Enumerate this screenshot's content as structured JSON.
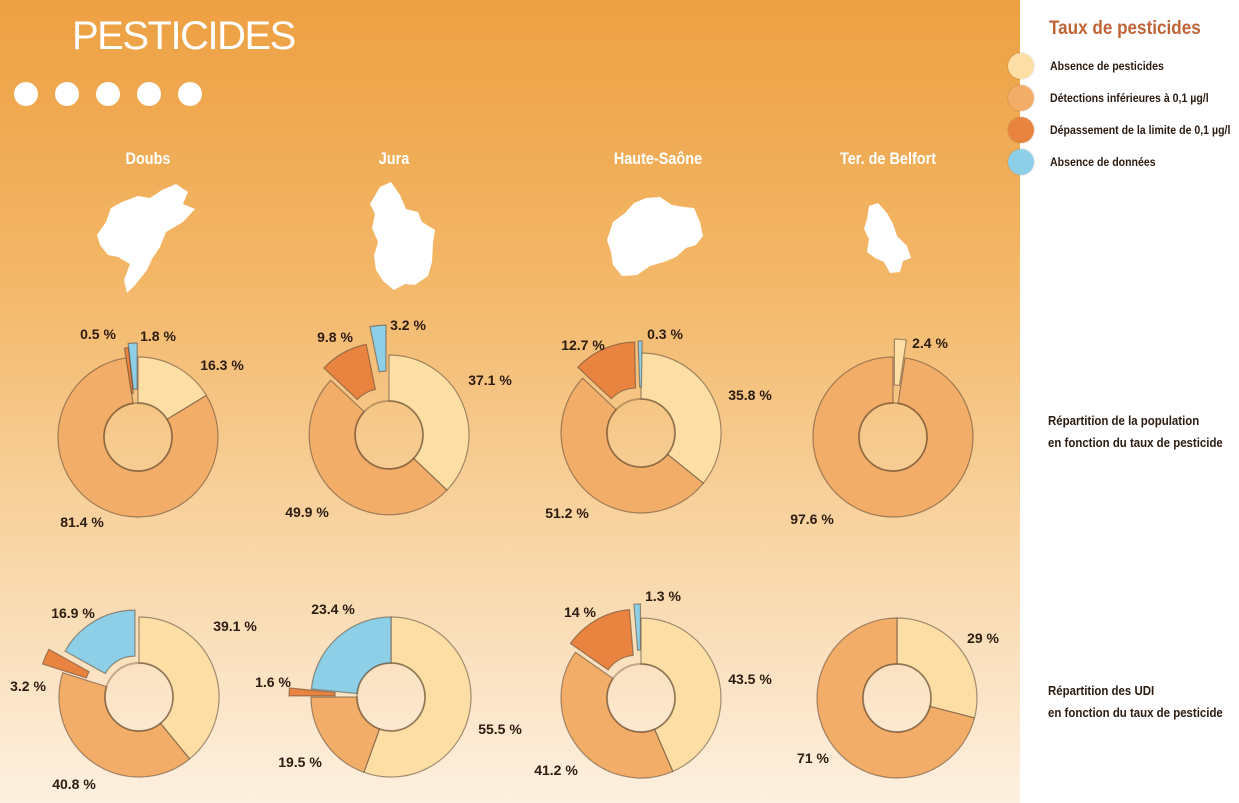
{
  "page": {
    "title": "PESTICIDES"
  },
  "legend": {
    "title": "Taux de pesticides",
    "items": [
      {
        "key": "absence",
        "label": "Absence de pesticides",
        "color": "#fddfa6"
      },
      {
        "key": "inf",
        "label": "Détections inférieures à 0,1 µg/l",
        "color": "#f2ae68"
      },
      {
        "key": "dep",
        "label": "Dépassement de la limite de 0,1 µg/l",
        "color": "#e8843f"
      },
      {
        "key": "nd",
        "label": "Absence de données",
        "color": "#8ccfe6"
      }
    ]
  },
  "departments": [
    "Doubs",
    "Jura",
    "Haute-Saône",
    "Ter. de Belfort"
  ],
  "row_captions": {
    "population": [
      "Répartition de la population",
      "en fonction du taux de pesticide"
    ],
    "udi": [
      "Répartition des UDI",
      "en fonction du taux de pesticide"
    ]
  },
  "chart_data": [
    {
      "type": "pie",
      "row": "population",
      "department": "Doubs",
      "slices": [
        {
          "category": "absence",
          "value": 16.3,
          "label": "16.3 %"
        },
        {
          "category": "inf",
          "value": 81.4,
          "label": "81.4 %"
        },
        {
          "category": "dep",
          "value": 0.5,
          "label": "0.5 %"
        },
        {
          "category": "nd",
          "value": 1.8,
          "label": "1.8 %"
        }
      ]
    },
    {
      "type": "pie",
      "row": "population",
      "department": "Jura",
      "slices": [
        {
          "category": "absence",
          "value": 37.1,
          "label": "37.1 %"
        },
        {
          "category": "inf",
          "value": 49.9,
          "label": "49.9 %"
        },
        {
          "category": "dep",
          "value": 9.8,
          "label": "9.8 %"
        },
        {
          "category": "nd",
          "value": 3.2,
          "label": "3.2 %"
        }
      ]
    },
    {
      "type": "pie",
      "row": "population",
      "department": "Haute-Saône",
      "slices": [
        {
          "category": "absence",
          "value": 35.8,
          "label": "35.8 %"
        },
        {
          "category": "inf",
          "value": 51.2,
          "label": "51.2 %"
        },
        {
          "category": "dep",
          "value": 12.7,
          "label": "12.7 %"
        },
        {
          "category": "nd",
          "value": 0.3,
          "label": "0.3 %"
        }
      ]
    },
    {
      "type": "pie",
      "row": "population",
      "department": "Ter. de Belfort",
      "slices": [
        {
          "category": "absence",
          "value": 2.4,
          "label": "2.4 %"
        },
        {
          "category": "inf",
          "value": 97.6,
          "label": "97.6 %"
        }
      ]
    },
    {
      "type": "pie",
      "row": "udi",
      "department": "Doubs",
      "slices": [
        {
          "category": "absence",
          "value": 39.1,
          "label": "39.1 %"
        },
        {
          "category": "inf",
          "value": 40.8,
          "label": "40.8 %"
        },
        {
          "category": "dep",
          "value": 3.2,
          "label": "3.2 %"
        },
        {
          "category": "nd",
          "value": 16.9,
          "label": "16.9 %"
        }
      ]
    },
    {
      "type": "pie",
      "row": "udi",
      "department": "Jura",
      "slices": [
        {
          "category": "absence",
          "value": 55.5,
          "label": "55.5 %"
        },
        {
          "category": "inf",
          "value": 19.5,
          "label": "19.5 %"
        },
        {
          "category": "dep",
          "value": 1.6,
          "label": "1.6 %"
        },
        {
          "category": "nd",
          "value": 23.4,
          "label": "23.4 %"
        }
      ]
    },
    {
      "type": "pie",
      "row": "udi",
      "department": "Haute-Saône",
      "slices": [
        {
          "category": "absence",
          "value": 43.5,
          "label": "43.5 %"
        },
        {
          "category": "inf",
          "value": 41.2,
          "label": "41.2 %"
        },
        {
          "category": "dep",
          "value": 14,
          "label": "14 %"
        },
        {
          "category": "nd",
          "value": 1.3,
          "label": "1.3 %"
        }
      ]
    },
    {
      "type": "pie",
      "row": "udi",
      "department": "Ter. de Belfort",
      "slices": [
        {
          "category": "absence",
          "value": 29,
          "label": "29 %"
        },
        {
          "category": "inf",
          "value": 71,
          "label": "71 %"
        }
      ]
    }
  ]
}
